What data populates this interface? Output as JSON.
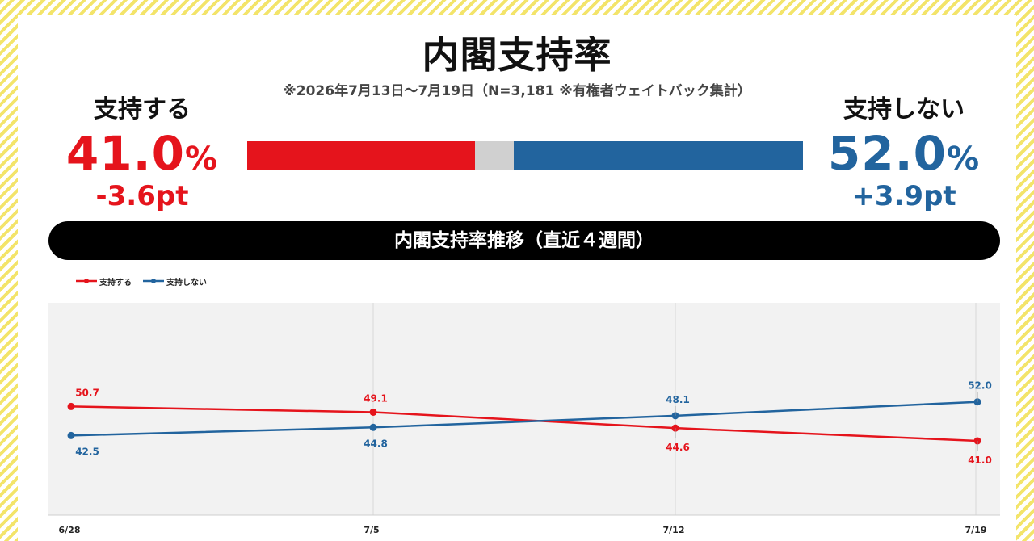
{
  "title": "内閣支持率",
  "subtitle": "※2026年7月13日～7月19日（N=3,181 ※有権者ウェイトバック集計）",
  "support": {
    "label": "支持する",
    "percent": "41.0",
    "unit": "%",
    "diff": "-3.6pt",
    "value": 41.0
  },
  "nonsupport": {
    "label": "支持しない",
    "percent": "52.0",
    "unit": "%",
    "diff": "+3.9pt",
    "value": 52.0
  },
  "bar": {
    "other_value": 7.0
  },
  "banner": "内閣支持率推移（直近４週間）",
  "colors": {
    "support": "#e5141c",
    "nonsupport": "#22649e",
    "other": "#d0d0d0",
    "plot_bg": "#f2f2f2"
  },
  "chart_data": {
    "type": "line",
    "categories": [
      "6/28",
      "7/5",
      "7/12",
      "7/19"
    ],
    "series": [
      {
        "name": "支持する",
        "values": [
          50.7,
          49.1,
          44.6,
          41.0
        ],
        "color": "#e5141c",
        "labels": [
          "50.7",
          "49.1",
          "44.6",
          "41.0"
        ]
      },
      {
        "name": "支持しない",
        "values": [
          42.5,
          44.8,
          48.1,
          52.0
        ],
        "color": "#22649e",
        "labels": [
          "42.5",
          "44.8",
          "48.1",
          "52.0"
        ]
      }
    ],
    "ylim": [
      20,
      80
    ],
    "legend": "top-left",
    "grid": "vertical"
  }
}
